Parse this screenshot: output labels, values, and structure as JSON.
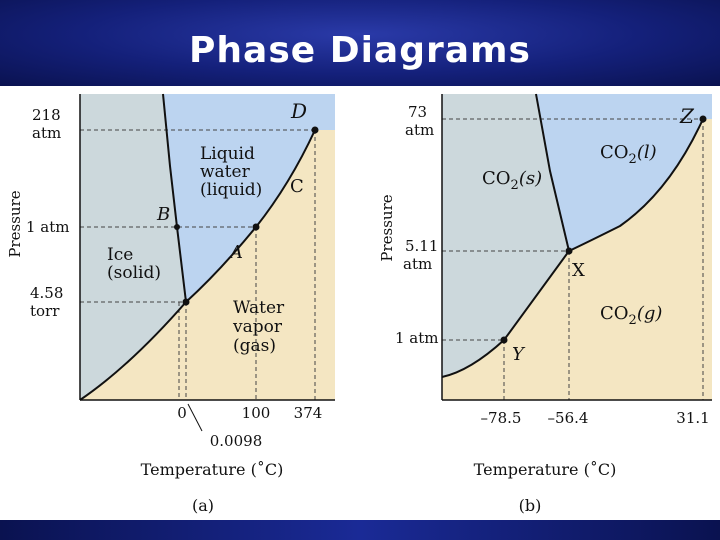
{
  "slide": {
    "title": "Phase Diagrams",
    "colors": {
      "title_bg": "#14207a",
      "title_text": "#ffffff",
      "solid_region": "#ccd8dc",
      "liquid_region": "#bcd4f0",
      "gas_region": "#f4e6c2",
      "curve": "#111111"
    }
  },
  "panel_a": {
    "caption": "(a)",
    "y_axis_label": "Pressure",
    "x_axis_label": "Temperature (˚C)",
    "y_ticks": [
      {
        "line1": "218",
        "line2": "atm"
      },
      {
        "line1": "1 atm",
        "line2": ""
      },
      {
        "line1": "4.58",
        "line2": "torr"
      }
    ],
    "x_ticks": [
      "0",
      "100",
      "374"
    ],
    "triple_point_label": "0.0098",
    "regions": {
      "solid": {
        "line1": "Ice",
        "line2": "(solid)"
      },
      "liquid": {
        "line1": "Liquid",
        "line2": "water",
        "line3": "(liquid)"
      },
      "gas": {
        "line1": "Water",
        "line2": "vapor",
        "line3": "(gas)"
      }
    },
    "points": {
      "A": "A",
      "B": "B",
      "C": "C",
      "D": "D"
    }
  },
  "panel_b": {
    "caption": "(b)",
    "y_axis_label": "Pressure",
    "x_axis_label": "Temperature (˚C)",
    "y_ticks": [
      {
        "line1": "73",
        "line2": "atm"
      },
      {
        "line1": "5.11",
        "line2": "atm"
      },
      {
        "line1": "1 atm",
        "line2": ""
      }
    ],
    "x_ticks": [
      "–78.5",
      "–56.4",
      "31.1"
    ],
    "regions": {
      "solid": {
        "main": "CO",
        "sub": "2",
        "state": "(s)"
      },
      "liquid": {
        "main": "CO",
        "sub": "2",
        "state": "(l)"
      },
      "gas": {
        "main": "CO",
        "sub": "2",
        "state": "(g)"
      }
    },
    "points": {
      "X": "X",
      "Y": "Y",
      "Z": "Z"
    }
  }
}
